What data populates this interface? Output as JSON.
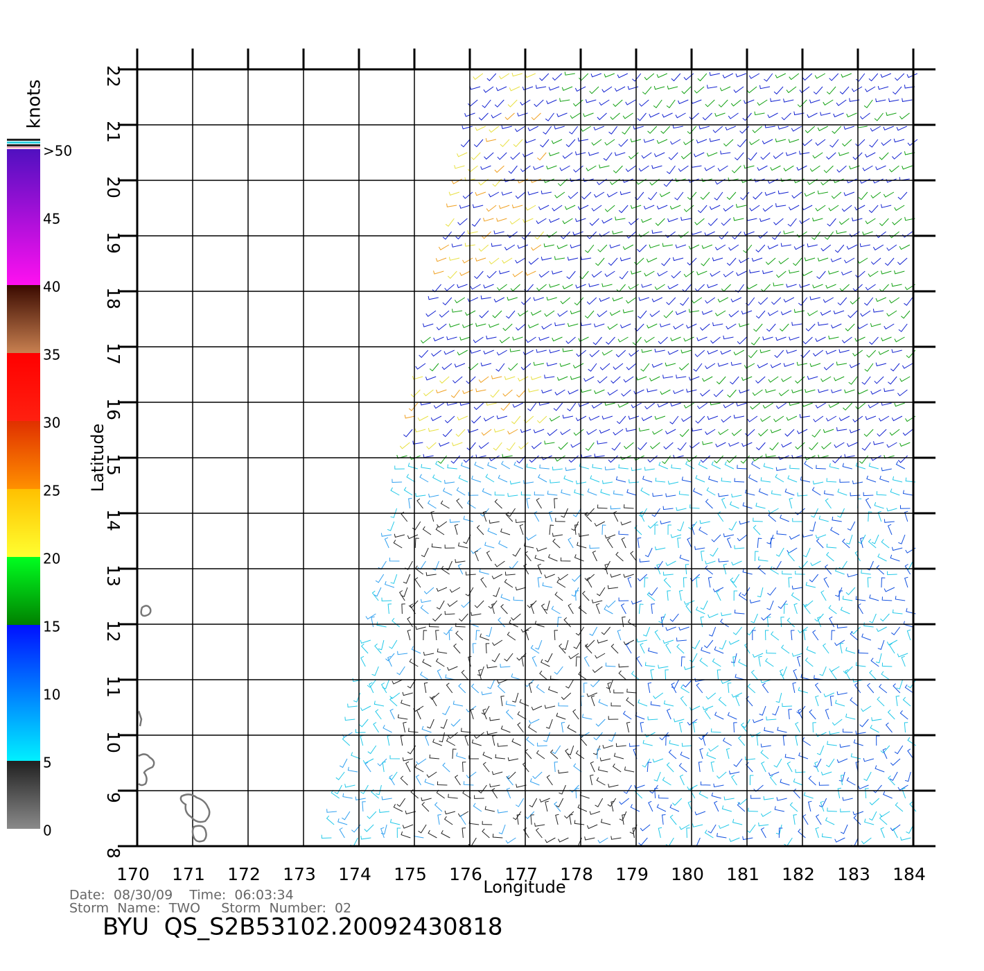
{
  "chart_data": {
    "type": "wind-map",
    "xlabel": "Longitude",
    "ylabel": "Latitude",
    "xlim": [
      170,
      184
    ],
    "ylim": [
      8,
      22
    ],
    "xticks": [
      170,
      171,
      172,
      173,
      174,
      175,
      176,
      177,
      178,
      179,
      180,
      181,
      182,
      183,
      184
    ],
    "yticks": [
      8,
      9,
      10,
      11,
      12,
      13,
      14,
      15,
      16,
      17,
      18,
      19,
      20,
      21,
      22
    ],
    "grid": true,
    "colorbar": {
      "label": "knots",
      "ticks": [
        0,
        5,
        10,
        15,
        20,
        25,
        30,
        35,
        40,
        45,
        {
          "value": 50,
          "label": ">50"
        }
      ],
      "color_stops": [
        {
          "value": 0,
          "color": "#8a8a8a"
        },
        {
          "value": 5,
          "color": "#202020"
        },
        {
          "value": 5,
          "color": "#00f0ff"
        },
        {
          "value": 15,
          "color": "#0010ff"
        },
        {
          "value": 15,
          "color": "#008000"
        },
        {
          "value": 20,
          "color": "#00ff20"
        },
        {
          "value": 20,
          "color": "#ffff30"
        },
        {
          "value": 25,
          "color": "#ffc000"
        },
        {
          "value": 25,
          "color": "#ff9000"
        },
        {
          "value": 30,
          "color": "#e03000"
        },
        {
          "value": 30,
          "color": "#ff2010"
        },
        {
          "value": 35,
          "color": "#ff0000"
        },
        {
          "value": 35,
          "color": "#c88050"
        },
        {
          "value": 40,
          "color": "#3a0a00"
        },
        {
          "value": 40,
          "color": "#ff10f0"
        },
        {
          "value": 50,
          "color": "#5010c0"
        }
      ]
    },
    "info": [
      "Date:  08/30/09    Time:  06:03:34",
      "Storm  Name:  TWO     Storm  Number:  02"
    ],
    "file_title": "BYU  QS_S2B53102.20092430818"
  }
}
